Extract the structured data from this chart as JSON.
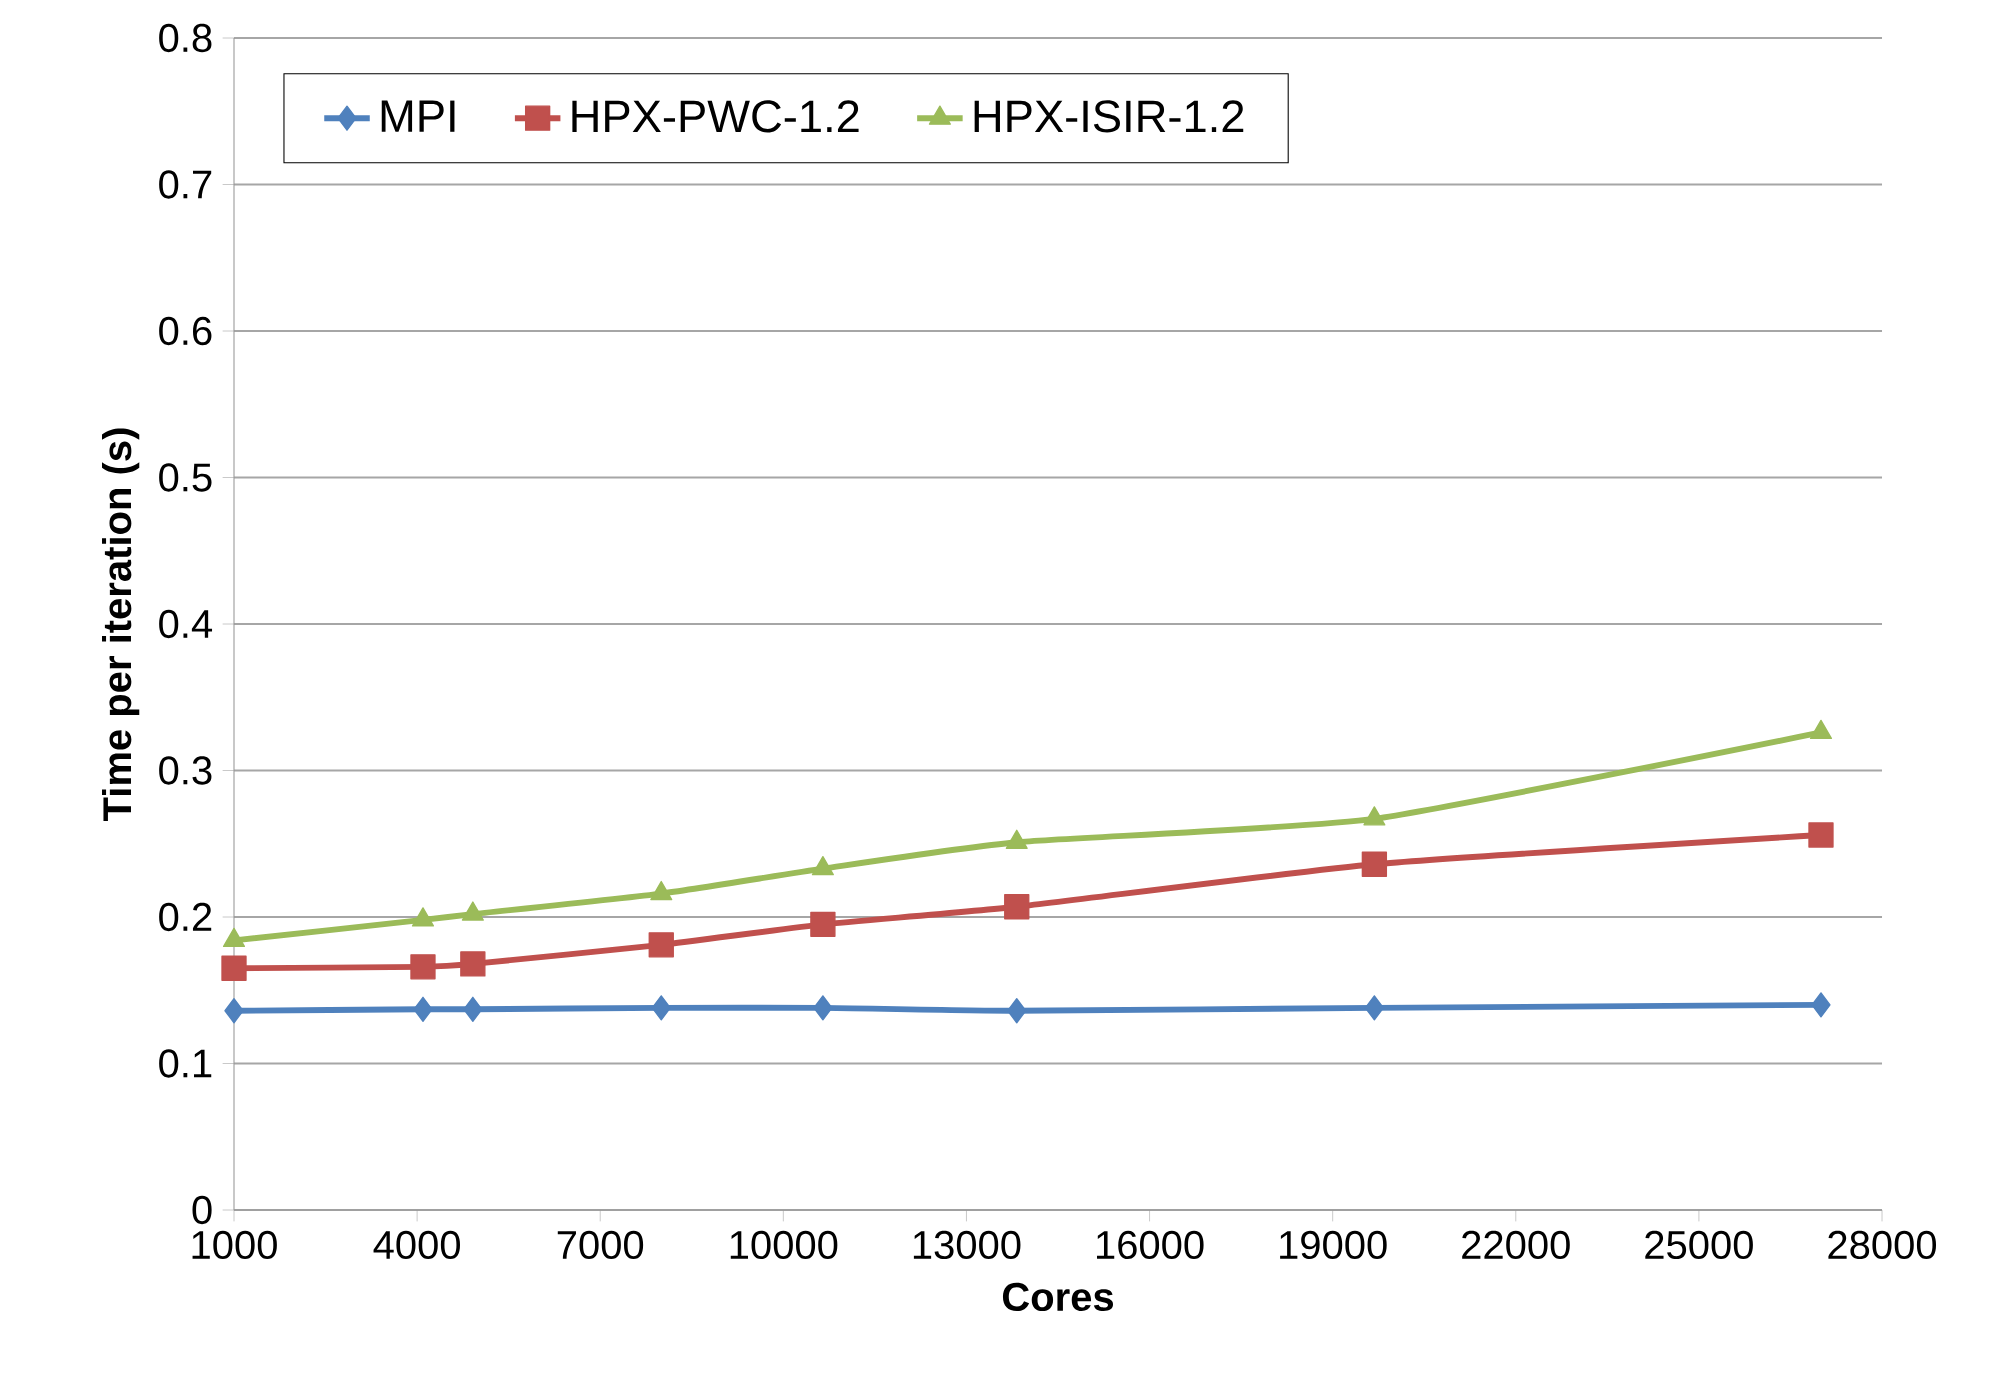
{
  "chart_data": {
    "type": "line",
    "xlabel": "Cores",
    "ylabel": "Time per iteration (s)",
    "x": [
      1000,
      4096,
      4913,
      8000,
      10648,
      13824,
      19683,
      27000
    ],
    "series": [
      {
        "name": "MPI",
        "color": "#4f81bd",
        "marker": "diamond",
        "values": [
          0.136,
          0.137,
          0.137,
          0.138,
          0.138,
          0.136,
          0.138,
          0.14
        ]
      },
      {
        "name": "HPX-PWC-1.2",
        "color": "#c0504d",
        "marker": "square",
        "values": [
          0.165,
          0.166,
          0.168,
          0.181,
          0.195,
          0.207,
          0.236,
          0.256
        ]
      },
      {
        "name": "HPX-ISIR-1.2",
        "color": "#9bbb59",
        "marker": "triangle",
        "values": [
          0.184,
          0.198,
          0.202,
          0.216,
          0.233,
          0.251,
          0.267,
          0.326
        ]
      }
    ],
    "xlim": [
      1000,
      28000
    ],
    "xticks": [
      1000,
      4000,
      7000,
      10000,
      13000,
      16000,
      19000,
      22000,
      25000,
      28000
    ],
    "ylim": [
      0,
      0.8
    ],
    "yticks": [
      0,
      0.1,
      0.2,
      0.3,
      0.4,
      0.5,
      0.6,
      0.7,
      0.8
    ],
    "grid": "y",
    "legend": "top left",
    "line_style": "solid"
  }
}
